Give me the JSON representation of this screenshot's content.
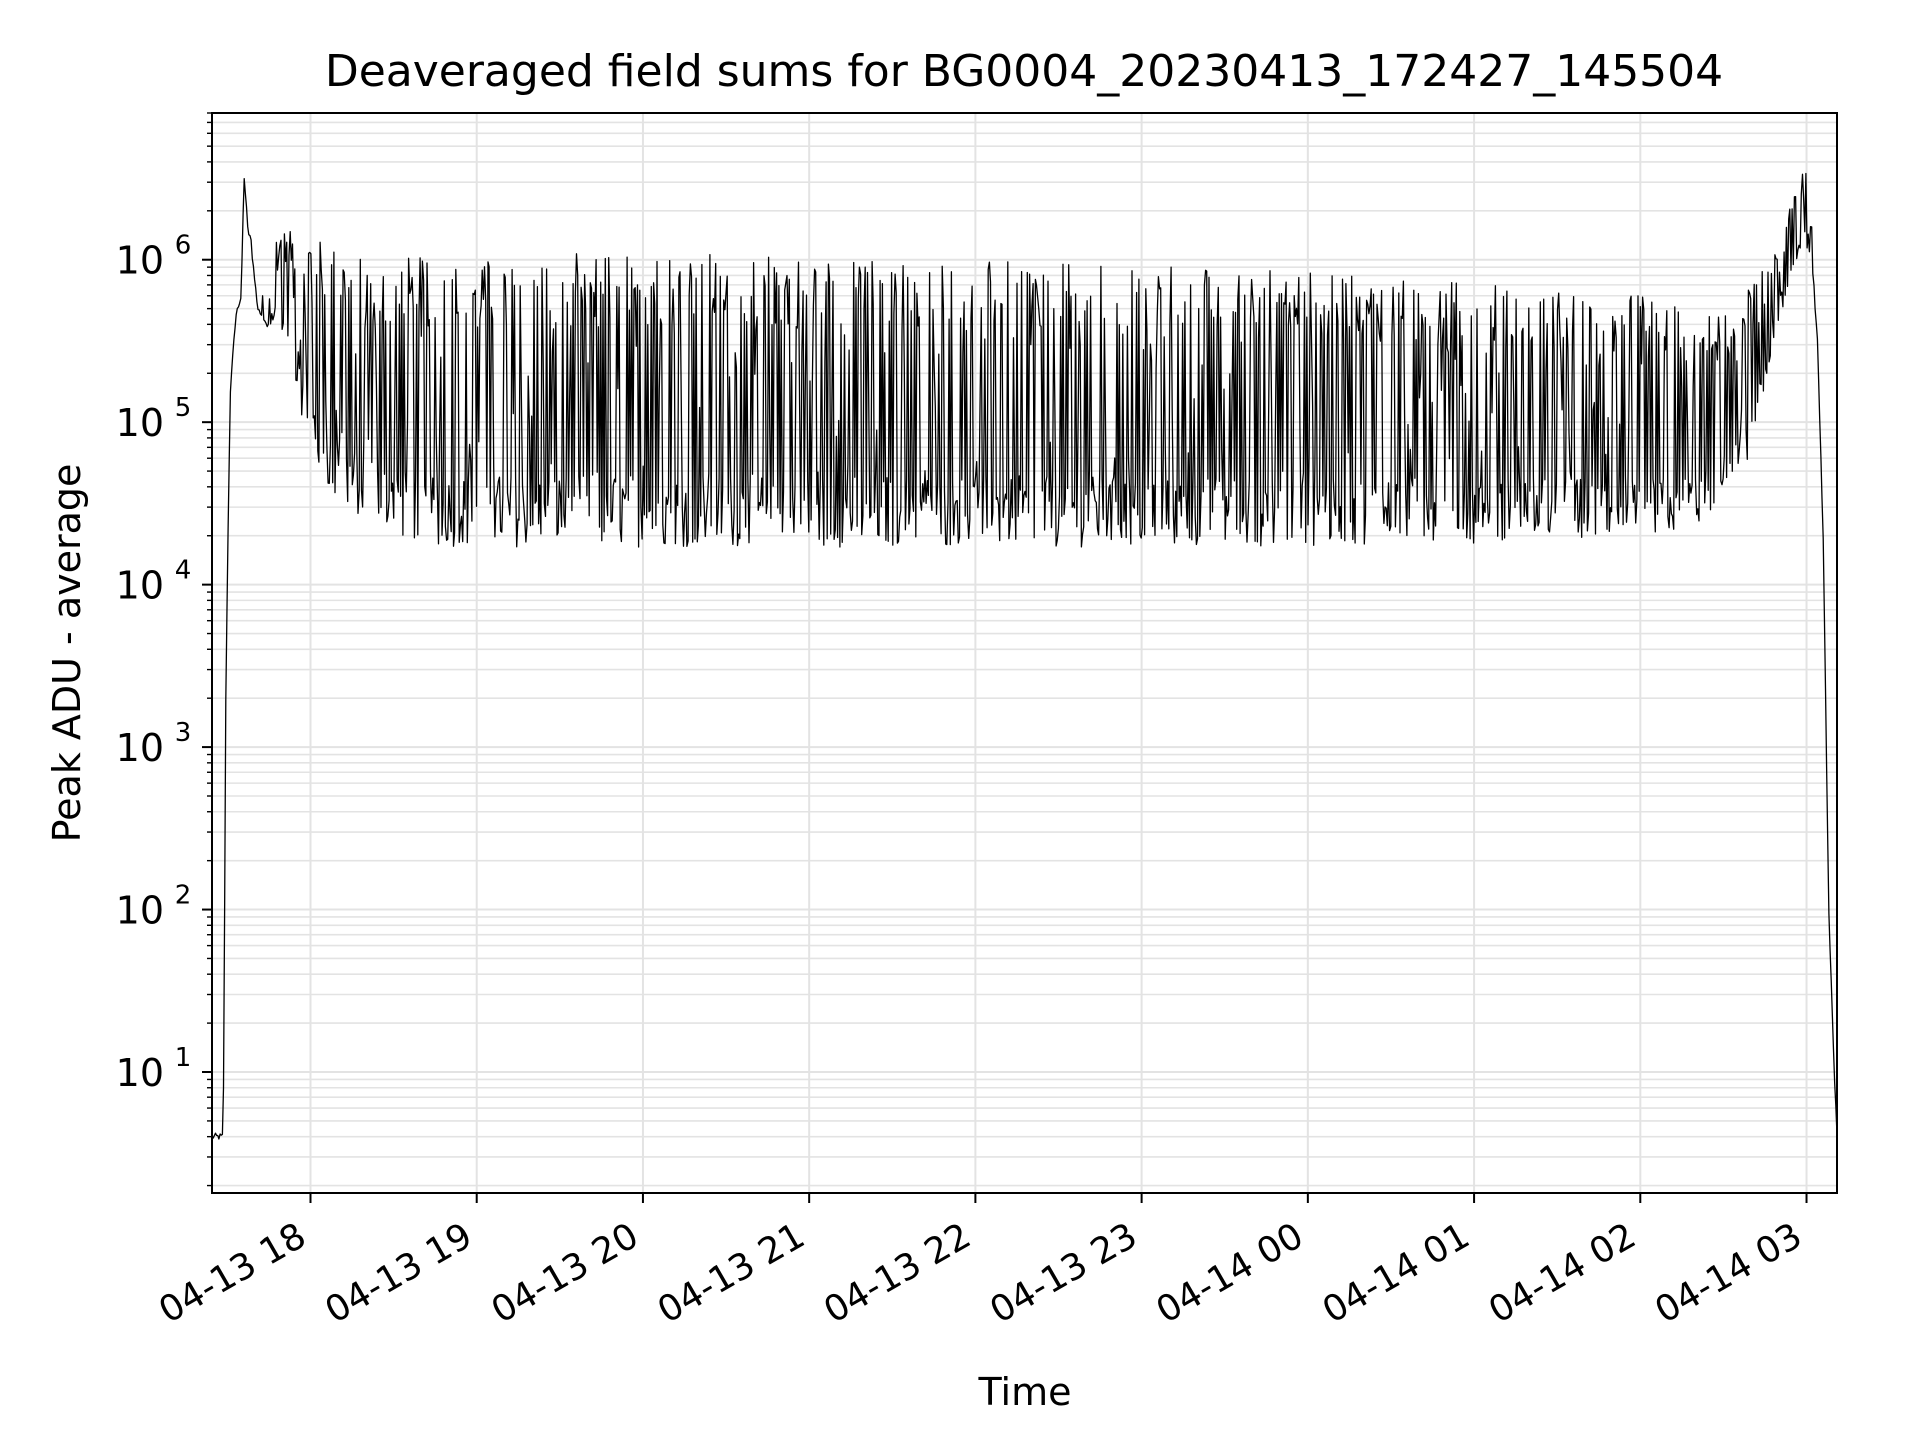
{
  "chart_data": {
    "type": "line",
    "title": "Deaveraged field sums for BG0004_20230413_172427_145504",
    "xlabel": "Time",
    "ylabel": "Peak ADU - average",
    "x_axis": {
      "kind": "datetime",
      "range": [
        "2023-04-13T17:24:27",
        "2023-04-14T03:11:00"
      ],
      "tick_labels": [
        "04-13 18",
        "04-13 19",
        "04-13 20",
        "04-13 21",
        "04-13 22",
        "04-13 23",
        "04-14 00",
        "04-14 01",
        "04-14 02",
        "04-14 03"
      ],
      "tick_values": [
        "2023-04-13T18:00",
        "2023-04-13T19:00",
        "2023-04-13T20:00",
        "2023-04-13T21:00",
        "2023-04-13T22:00",
        "2023-04-13T23:00",
        "2023-04-14T00:00",
        "2023-04-14T01:00",
        "2023-04-14T02:00",
        "2023-04-14T03:00"
      ]
    },
    "y_axis": {
      "scale": "log",
      "range": [
        1.8,
        8000000
      ],
      "tick_labels": [
        {
          "base": "10",
          "exp": "1"
        },
        {
          "base": "10",
          "exp": "2"
        },
        {
          "base": "10",
          "exp": "3"
        },
        {
          "base": "10",
          "exp": "4"
        },
        {
          "base": "10",
          "exp": "5"
        },
        {
          "base": "10",
          "exp": "6"
        }
      ],
      "tick_values": [
        10,
        100,
        1000,
        10000,
        100000,
        1000000
      ]
    },
    "grid": true,
    "grid_minor": true,
    "line_color": "#000000",
    "series": [
      {
        "points_note_free": true,
        "x": [
          "2023-04-13T17:24:27",
          "2023-04-13T17:27:00",
          "2023-04-13T17:28:30",
          "2023-04-13T17:29:30",
          "2023-04-13T17:31:00",
          "2023-04-13T17:33:00",
          "2023-04-13T17:35:00",
          "2023-04-13T17:36:00",
          "2023-04-13T17:37:30",
          "2023-04-13T17:38:30",
          "2023-04-13T17:39:00",
          "2023-04-13T17:41:00",
          "2023-04-13T17:44:00",
          "2023-04-13T17:47:00",
          "2023-04-13T17:50:00",
          "2023-04-13T17:53:00",
          "2023-04-13T17:56:00",
          "2023-04-13T18:00:00",
          "2023-04-13T18:04:00",
          "2023-04-13T18:08:00",
          "2023-04-13T18:12:00",
          "2023-04-13T18:16:00",
          "2023-04-13T18:20:00",
          "2023-04-13T18:25:00",
          "2023-04-13T18:30:00",
          "2023-04-13T18:40:00",
          "2023-04-13T18:50:00",
          "2023-04-13T19:00:00",
          "2023-04-13T19:30:00",
          "2023-04-13T20:00:00",
          "2023-04-13T20:30:00",
          "2023-04-13T21:00:00",
          "2023-04-13T21:30:00",
          "2023-04-13T22:00:00",
          "2023-04-13T22:30:00",
          "2023-04-13T23:00:00",
          "2023-04-13T23:30:00",
          "2023-04-14T00:00:00",
          "2023-04-14T00:30:00",
          "2023-04-14T01:00:00",
          "2023-04-14T01:30:00",
          "2023-04-14T02:00:00",
          "2023-04-14T02:10:00",
          "2023-04-14T02:20:00",
          "2023-04-14T02:30:00",
          "2023-04-14T02:40:00",
          "2023-04-14T02:45:00",
          "2023-04-14T02:50:00",
          "2023-04-14T02:55:00",
          "2023-04-14T03:00:00",
          "2023-04-14T03:02:00",
          "2023-04-14T03:04:00",
          "2023-04-14T03:06:00",
          "2023-04-14T03:08:00",
          "2023-04-14T03:10:00",
          "2023-04-14T03:11:00"
        ],
        "lower": [
          4,
          4,
          4,
          3000,
          150000,
          450000,
          600000,
          3300000,
          1500000,
          1400000,
          1000000,
          500000,
          350000,
          400000,
          300000,
          200000,
          120000,
          80000,
          45000,
          35000,
          30000,
          27000,
          25000,
          22000,
          20000,
          18000,
          17000,
          17000,
          17000,
          17000,
          17000,
          17000,
          17000,
          17000,
          17000,
          17000,
          17000,
          17000,
          18000,
          18000,
          19000,
          19000,
          20000,
          22000,
          30000,
          60000,
          150000,
          400000,
          900000,
          1200000,
          1000000,
          300000,
          20000,
          100,
          10,
          4
        ],
        "upper": [
          4,
          4,
          4,
          3000,
          150000,
          450000,
          600000,
          3300000,
          1500000,
          1400000,
          1000000,
          600000,
          800000,
          1500000,
          1500000,
          1500000,
          1400000,
          1400000,
          1300000,
          1200000,
          1100000,
          1100000,
          1100000,
          1050000,
          1050000,
          1050000,
          1050000,
          1050000,
          1100000,
          1100000,
          1100000,
          1050000,
          1000000,
          1000000,
          950000,
          950000,
          900000,
          850000,
          800000,
          750000,
          650000,
          600000,
          550000,
          500000,
          450000,
          700000,
          900000,
          1500000,
          2300000,
          4000000,
          1500000,
          300000,
          20000,
          100,
          10,
          4
        ]
      }
    ]
  }
}
